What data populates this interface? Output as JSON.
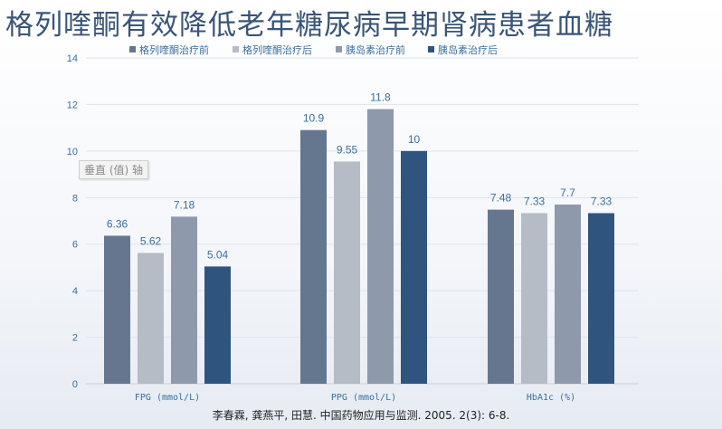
{
  "page": {
    "title": "格列喹酮有效降低老年糖尿病早期肾病患者血糖",
    "axis_tooltip": "垂直 (值) 轴",
    "citation": "李春霖, 龚燕平, 田慧. 中国药物应用与监测. 2005. 2(3): 6-8."
  },
  "chart_data": {
    "type": "bar",
    "categories": [
      "FPG (mmol/L)",
      "PPG (mmol/L)",
      "HbA1c (%)"
    ],
    "series": [
      {
        "name": "格列喹酮治疗前",
        "values": [
          6.36,
          10.9,
          7.48
        ],
        "labels": [
          "6.36",
          "10.9",
          "7.48"
        ],
        "color": "#64778f"
      },
      {
        "name": "格列喹酮治疗后",
        "values": [
          5.62,
          9.55,
          7.33
        ],
        "labels": [
          "5.62",
          "9.55",
          "7.33"
        ],
        "color": "#b5bcc6"
      },
      {
        "name": "胰岛素治疗前",
        "values": [
          7.18,
          11.8,
          7.7
        ],
        "labels": [
          "7.18",
          "11.8",
          "7.7"
        ],
        "color": "#8e99ab"
      },
      {
        "name": "胰岛素治疗后",
        "values": [
          5.04,
          10,
          7.33
        ],
        "labels": [
          "5.04",
          "10",
          "7.33"
        ],
        "color": "#2f557f"
      }
    ],
    "ylim": [
      0,
      14
    ],
    "yticks": [
      0,
      2,
      4,
      6,
      8,
      10,
      12,
      14
    ],
    "grid": true,
    "legend_position": "top",
    "label_color": "#3a6f9c"
  }
}
